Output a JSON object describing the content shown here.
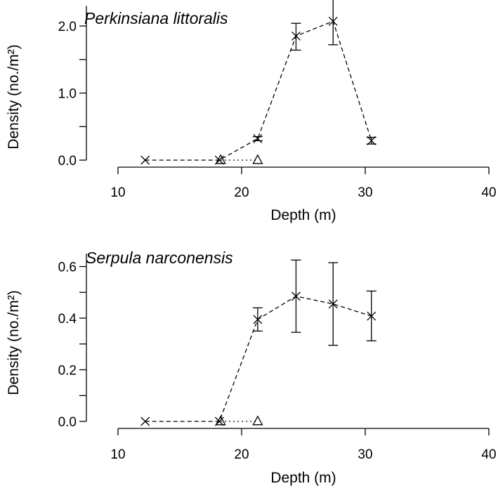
{
  "chart_data": [
    {
      "type": "line",
      "title": "Perkinsiana littoralis",
      "xlabel": "Depth (m)",
      "ylabel": "Density (no./m²)",
      "xlim": [
        10,
        40
      ],
      "ylim": [
        0,
        2.3
      ],
      "xticks": [
        "10",
        "20",
        "30",
        "40"
      ],
      "yticks": [
        "0.0",
        "1.0",
        "2.0"
      ],
      "series": [
        {
          "marker": "x",
          "line": "dashed",
          "x": [
            12.2,
            18.2,
            21.3,
            24.4,
            27.4,
            30.5
          ],
          "y": [
            0.0,
            0.0,
            0.32,
            1.85,
            2.07,
            0.29
          ],
          "err_low": [
            0.0,
            0.0,
            0.29,
            1.64,
            1.72,
            0.24
          ],
          "err_high": [
            0.0,
            0.0,
            0.35,
            2.04,
            2.42,
            0.34
          ]
        },
        {
          "marker": "triangle",
          "line": "dotted",
          "x": [
            18.3,
            21.3
          ],
          "y": [
            0.0,
            0.0
          ]
        }
      ]
    },
    {
      "type": "line",
      "title": "Serpula narconensis",
      "xlabel": "Depth (m)",
      "ylabel": "Density (no./m²)",
      "xlim": [
        10,
        40
      ],
      "ylim": [
        0,
        0.65
      ],
      "xticks": [
        "10",
        "20",
        "30",
        "40"
      ],
      "yticks": [
        "0.0",
        "0.2",
        "0.4",
        "0.6"
      ],
      "series": [
        {
          "marker": "x",
          "line": "dashed",
          "x": [
            12.2,
            18.2,
            21.3,
            24.4,
            27.4,
            30.5
          ],
          "y": [
            0.0,
            0.0,
            0.395,
            0.485,
            0.455,
            0.408
          ],
          "err_low": [
            0.0,
            0.0,
            0.35,
            0.345,
            0.295,
            0.312
          ],
          "err_high": [
            0.0,
            0.0,
            0.44,
            0.625,
            0.615,
            0.505
          ]
        },
        {
          "marker": "triangle",
          "line": "dotted",
          "x": [
            18.3,
            21.3
          ],
          "y": [
            0.0,
            0.0
          ]
        }
      ]
    }
  ]
}
